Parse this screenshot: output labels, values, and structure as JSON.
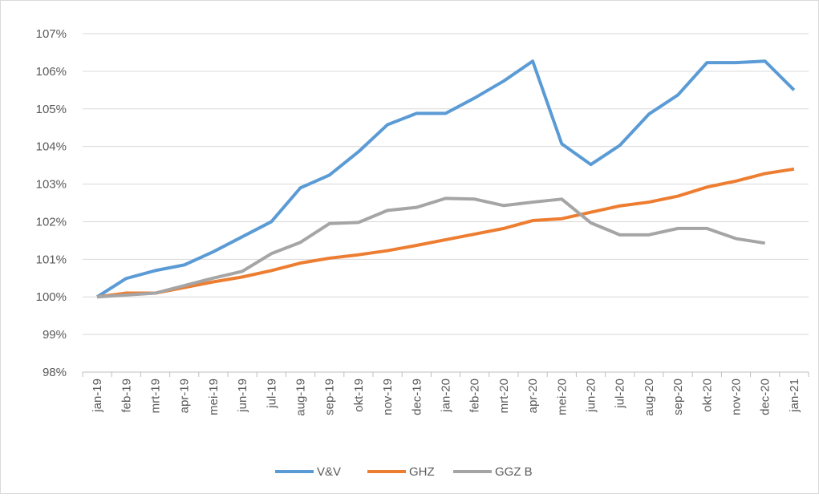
{
  "chart_data": {
    "type": "line",
    "categories": [
      "jan-19",
      "feb-19",
      "mrt-19",
      "apr-19",
      "mei-19",
      "jun-19",
      "jul-19",
      "aug-19",
      "sep-19",
      "okt-19",
      "nov-19",
      "dec-19",
      "jan-20",
      "feb-20",
      "mrt-20",
      "apr-20",
      "mei-20",
      "jun-20",
      "jul-20",
      "aug-20",
      "sep-20",
      "okt-20",
      "nov-20",
      "dec-20",
      "jan-21"
    ],
    "series": [
      {
        "name": "V&V",
        "color": "#5b9bd5",
        "values": [
          100,
          100.49,
          100.7,
          100.85,
          101.2,
          101.6,
          102.0,
          102.9,
          103.24,
          103.86,
          104.58,
          104.88,
          104.88,
          105.29,
          105.74,
          106.27,
          104.07,
          103.52,
          104.03,
          104.86,
          105.37,
          106.23,
          106.23,
          106.27,
          105.5
        ]
      },
      {
        "name": "GHZ",
        "color": "#ed7d31",
        "values": [
          100,
          100.1,
          100.1,
          100.25,
          100.4,
          100.53,
          100.7,
          100.9,
          101.03,
          101.12,
          101.23,
          101.37,
          101.52,
          101.67,
          101.82,
          102.03,
          102.08,
          102.25,
          102.42,
          102.52,
          102.68,
          102.92,
          103.08,
          103.28,
          103.4
        ]
      },
      {
        "name": "GGZ B",
        "color": "#a5a5a5",
        "values": [
          100,
          100.05,
          100.1,
          100.3,
          100.5,
          100.68,
          101.15,
          101.45,
          101.95,
          101.98,
          102.3,
          102.38,
          102.62,
          102.6,
          102.43,
          102.52,
          102.6,
          101.97,
          101.65,
          101.65,
          101.82,
          101.82,
          101.55,
          101.43,
          null
        ]
      }
    ],
    "ylim": [
      98,
      107
    ],
    "yticks": [
      {
        "value": 98,
        "label": "98%"
      },
      {
        "value": 99,
        "label": "99%"
      },
      {
        "value": 100,
        "label": "100%"
      },
      {
        "value": 101,
        "label": "101%"
      },
      {
        "value": 102,
        "label": "102%"
      },
      {
        "value": 103,
        "label": "103%"
      },
      {
        "value": 104,
        "label": "104%"
      },
      {
        "value": 105,
        "label": "105%"
      },
      {
        "value": 106,
        "label": "106%"
      },
      {
        "value": 107,
        "label": "107%"
      }
    ],
    "grid": true,
    "legend": "bottom"
  }
}
